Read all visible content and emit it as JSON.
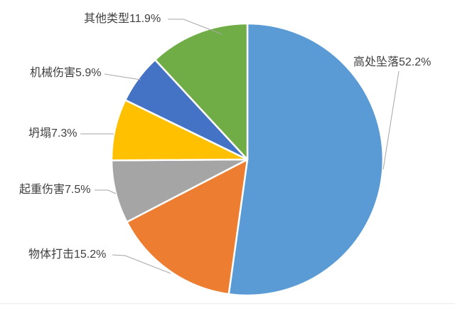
{
  "chart_data": {
    "type": "pie",
    "title": "",
    "unit": "%",
    "direction": "clockwise",
    "start_angle_deg": 0,
    "legend_position": "none",
    "label_style": "outside-callout",
    "text_color": "#404040",
    "leader_line_color": "#A6A6A6",
    "slice_border_color": "#FFFFFF",
    "slices": [
      {
        "label": "高处坠落",
        "value": 52.2,
        "display": "高处坠落52.2%",
        "color": "#5B9BD5"
      },
      {
        "label": "物体打击",
        "value": 15.2,
        "display": "物体打击15.2%",
        "color": "#ED7D31"
      },
      {
        "label": "起重伤害",
        "value": 7.5,
        "display": "起重伤害7.5%",
        "color": "#A5A5A5"
      },
      {
        "label": "坍塌",
        "value": 7.3,
        "display": "坍塌7.3%",
        "color": "#FFC000"
      },
      {
        "label": "机械伤害",
        "value": 5.9,
        "display": "机械伤害5.9%",
        "color": "#4472C4"
      },
      {
        "label": "其他类型",
        "value": 11.9,
        "display": "其他类型11.9%",
        "color": "#70AD47"
      }
    ]
  }
}
